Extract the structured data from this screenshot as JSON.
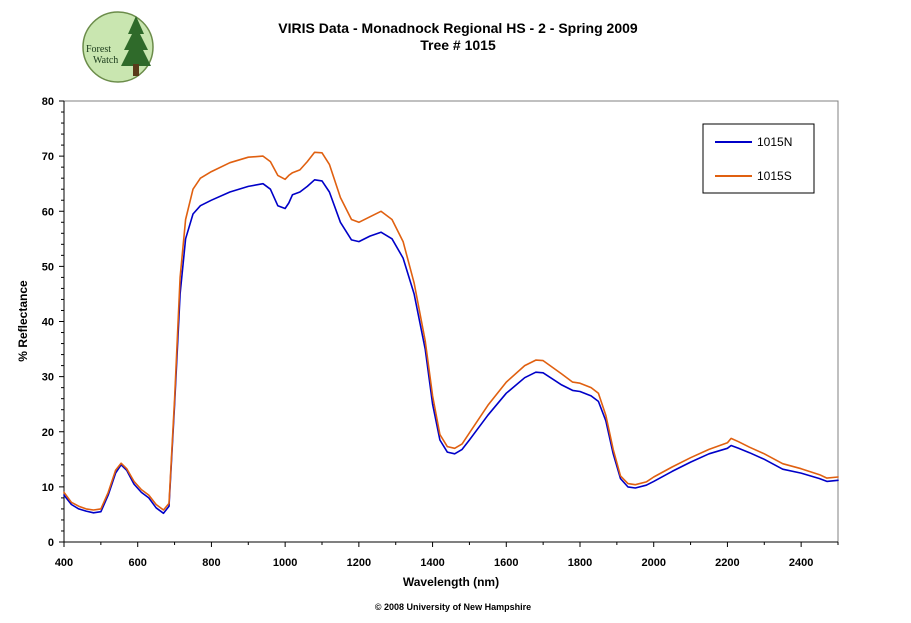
{
  "logo": {
    "line1": "Forest",
    "line2": "Watch"
  },
  "copyright": "© 2008 University of New Hampshire",
  "chart_data": {
    "type": "line",
    "title": "VIRIS Data - Monadnock Regional HS - 2 - Spring 2009",
    "subtitle": "Tree # 1015",
    "xlabel": "Wavelength (nm)",
    "ylabel": "% Reflectance",
    "xlim": [
      400,
      2500
    ],
    "ylim": [
      0,
      80
    ],
    "x_ticks": [
      400,
      600,
      800,
      1000,
      1200,
      1400,
      1600,
      1800,
      2000,
      2200,
      2400
    ],
    "y_ticks": [
      0,
      10,
      20,
      30,
      40,
      50,
      60,
      70,
      80
    ],
    "grid": false,
    "legend_position": "top-right",
    "series": [
      {
        "name": "1015N",
        "color": "#0000c8",
        "points": [
          [
            400,
            8.5
          ],
          [
            420,
            6.8
          ],
          [
            440,
            6.0
          ],
          [
            460,
            5.6
          ],
          [
            480,
            5.3
          ],
          [
            500,
            5.5
          ],
          [
            520,
            8.5
          ],
          [
            540,
            12.5
          ],
          [
            555,
            14.0
          ],
          [
            570,
            13.0
          ],
          [
            590,
            10.5
          ],
          [
            610,
            9.0
          ],
          [
            630,
            8.0
          ],
          [
            650,
            6.2
          ],
          [
            670,
            5.2
          ],
          [
            685,
            6.5
          ],
          [
            700,
            25.0
          ],
          [
            715,
            45.0
          ],
          [
            730,
            55.0
          ],
          [
            750,
            59.5
          ],
          [
            770,
            61.0
          ],
          [
            800,
            62.0
          ],
          [
            850,
            63.5
          ],
          [
            900,
            64.5
          ],
          [
            940,
            65.0
          ],
          [
            960,
            64.0
          ],
          [
            980,
            61.0
          ],
          [
            1000,
            60.5
          ],
          [
            1010,
            61.5
          ],
          [
            1020,
            63.0
          ],
          [
            1040,
            63.5
          ],
          [
            1060,
            64.5
          ],
          [
            1080,
            65.7
          ],
          [
            1100,
            65.5
          ],
          [
            1120,
            63.5
          ],
          [
            1150,
            58.0
          ],
          [
            1180,
            54.8
          ],
          [
            1200,
            54.5
          ],
          [
            1230,
            55.5
          ],
          [
            1260,
            56.2
          ],
          [
            1290,
            55.0
          ],
          [
            1320,
            51.5
          ],
          [
            1350,
            45.0
          ],
          [
            1380,
            35.0
          ],
          [
            1400,
            25.0
          ],
          [
            1420,
            18.5
          ],
          [
            1440,
            16.3
          ],
          [
            1460,
            16.0
          ],
          [
            1480,
            16.8
          ],
          [
            1500,
            18.5
          ],
          [
            1550,
            23.0
          ],
          [
            1600,
            27.0
          ],
          [
            1650,
            29.8
          ],
          [
            1680,
            30.8
          ],
          [
            1700,
            30.7
          ],
          [
            1750,
            28.5
          ],
          [
            1780,
            27.5
          ],
          [
            1800,
            27.3
          ],
          [
            1830,
            26.5
          ],
          [
            1850,
            25.5
          ],
          [
            1870,
            22.0
          ],
          [
            1890,
            16.0
          ],
          [
            1910,
            11.5
          ],
          [
            1930,
            10.0
          ],
          [
            1950,
            9.8
          ],
          [
            1980,
            10.3
          ],
          [
            2000,
            11.0
          ],
          [
            2050,
            12.8
          ],
          [
            2100,
            14.5
          ],
          [
            2150,
            16.0
          ],
          [
            2200,
            17.0
          ],
          [
            2210,
            17.5
          ],
          [
            2230,
            17.0
          ],
          [
            2260,
            16.2
          ],
          [
            2300,
            15.0
          ],
          [
            2350,
            13.2
          ],
          [
            2400,
            12.5
          ],
          [
            2450,
            11.5
          ],
          [
            2470,
            11.0
          ],
          [
            2500,
            11.2
          ]
        ]
      },
      {
        "name": "1015S",
        "color": "#e06010",
        "points": [
          [
            400,
            9.0
          ],
          [
            420,
            7.2
          ],
          [
            440,
            6.5
          ],
          [
            460,
            6.0
          ],
          [
            480,
            5.8
          ],
          [
            500,
            6.0
          ],
          [
            520,
            9.0
          ],
          [
            540,
            13.0
          ],
          [
            555,
            14.3
          ],
          [
            570,
            13.3
          ],
          [
            590,
            11.0
          ],
          [
            610,
            9.5
          ],
          [
            630,
            8.5
          ],
          [
            650,
            6.8
          ],
          [
            670,
            5.8
          ],
          [
            685,
            7.0
          ],
          [
            700,
            26.0
          ],
          [
            715,
            48.0
          ],
          [
            730,
            58.5
          ],
          [
            750,
            64.0
          ],
          [
            770,
            66.0
          ],
          [
            800,
            67.2
          ],
          [
            850,
            68.8
          ],
          [
            900,
            69.8
          ],
          [
            940,
            70.0
          ],
          [
            960,
            69.0
          ],
          [
            980,
            66.5
          ],
          [
            1000,
            65.8
          ],
          [
            1010,
            66.5
          ],
          [
            1020,
            67.0
          ],
          [
            1040,
            67.5
          ],
          [
            1060,
            69.0
          ],
          [
            1080,
            70.7
          ],
          [
            1100,
            70.6
          ],
          [
            1120,
            68.5
          ],
          [
            1150,
            62.5
          ],
          [
            1180,
            58.5
          ],
          [
            1200,
            58.0
          ],
          [
            1230,
            59.0
          ],
          [
            1260,
            60.0
          ],
          [
            1290,
            58.5
          ],
          [
            1320,
            54.5
          ],
          [
            1350,
            47.0
          ],
          [
            1380,
            36.5
          ],
          [
            1400,
            26.5
          ],
          [
            1420,
            19.5
          ],
          [
            1440,
            17.3
          ],
          [
            1460,
            17.0
          ],
          [
            1480,
            17.8
          ],
          [
            1500,
            19.8
          ],
          [
            1550,
            24.8
          ],
          [
            1600,
            29.0
          ],
          [
            1650,
            32.0
          ],
          [
            1680,
            33.0
          ],
          [
            1700,
            32.9
          ],
          [
            1750,
            30.5
          ],
          [
            1780,
            29.0
          ],
          [
            1800,
            28.8
          ],
          [
            1830,
            28.0
          ],
          [
            1850,
            27.0
          ],
          [
            1870,
            23.0
          ],
          [
            1890,
            16.8
          ],
          [
            1910,
            12.0
          ],
          [
            1930,
            10.6
          ],
          [
            1950,
            10.4
          ],
          [
            1980,
            10.9
          ],
          [
            2000,
            11.8
          ],
          [
            2050,
            13.6
          ],
          [
            2100,
            15.3
          ],
          [
            2150,
            16.8
          ],
          [
            2200,
            18.0
          ],
          [
            2210,
            18.8
          ],
          [
            2230,
            18.2
          ],
          [
            2260,
            17.2
          ],
          [
            2300,
            16.0
          ],
          [
            2350,
            14.2
          ],
          [
            2400,
            13.3
          ],
          [
            2450,
            12.2
          ],
          [
            2470,
            11.6
          ],
          [
            2500,
            11.8
          ]
        ]
      }
    ]
  }
}
